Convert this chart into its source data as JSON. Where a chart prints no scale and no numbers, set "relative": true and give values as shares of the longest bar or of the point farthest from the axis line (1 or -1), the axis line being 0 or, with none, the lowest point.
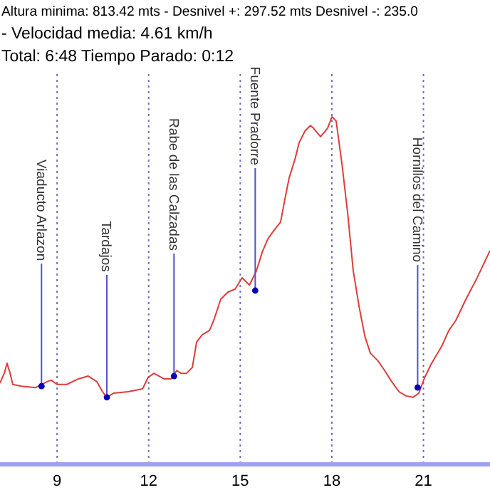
{
  "chart_data": {
    "type": "line",
    "title": "Altura minima: 813.42 mts - Desnivel +: 297.52 mts Desnivel -: 235.0",
    "subtitle": "- Velocidad media: 4.61 km/h",
    "annotations": [
      "Total: 6:48  Tiempo Parado: 0:12",
      {
        "text": "Viaducto Arlazon",
        "x": 8.49,
        "y": 0.225
      },
      {
        "text": "Tardajos",
        "x": 10.63,
        "y": 0.193
      },
      {
        "text": "Rabe de las Calzadas",
        "x": 12.83,
        "y": 0.254
      },
      {
        "text": "Fuente Pradorre",
        "x": 15.49,
        "y": 0.5
      },
      {
        "text": "Hornillos del Camino",
        "x": 20.81,
        "y": 0.221
      }
    ],
    "relative": true,
    "xlim": [
      7.13,
      23.18
    ],
    "xticks": [
      9,
      12,
      15,
      18,
      21
    ],
    "grid": "x",
    "marker": "none",
    "line_style": "solid",
    "x": [
      7.13,
      7.27,
      7.36,
      7.46,
      7.55,
      7.83,
      8.3,
      8.67,
      8.81,
      9.0,
      9.32,
      9.7,
      10.02,
      10.3,
      10.49,
      10.63,
      10.86,
      11.33,
      11.8,
      11.98,
      12.17,
      12.5,
      12.73,
      12.92,
      13.06,
      13.24,
      13.43,
      13.57,
      13.76,
      13.99,
      14.13,
      14.36,
      14.6,
      14.83,
      15.06,
      15.3,
      15.53,
      15.72,
      15.9,
      16.09,
      16.32,
      16.46,
      16.6,
      16.79,
      16.93,
      17.12,
      17.3,
      17.4,
      17.63,
      17.86,
      18.0,
      18.14,
      18.33,
      18.52,
      18.7,
      18.89,
      19.08,
      19.26,
      19.5,
      19.73,
      19.96,
      20.2,
      20.43,
      20.66,
      20.85,
      21.04,
      21.27,
      21.6,
      21.83,
      22.06,
      22.39,
      22.76,
      23.18
    ],
    "series": [
      {
        "color": "#e03c3c",
        "values": [
          0.234,
          0.262,
          0.291,
          0.262,
          0.23,
          0.225,
          0.221,
          0.238,
          0.242,
          0.23,
          0.23,
          0.246,
          0.254,
          0.238,
          0.209,
          0.193,
          0.205,
          0.209,
          0.217,
          0.25,
          0.262,
          0.246,
          0.246,
          0.27,
          0.262,
          0.262,
          0.279,
          0.352,
          0.373,
          0.385,
          0.414,
          0.475,
          0.496,
          0.504,
          0.537,
          0.516,
          0.557,
          0.611,
          0.648,
          0.672,
          0.697,
          0.762,
          0.824,
          0.877,
          0.926,
          0.959,
          0.975,
          0.967,
          0.943,
          0.967,
          1,
          0.988,
          0.865,
          0.721,
          0.557,
          0.455,
          0.369,
          0.32,
          0.299,
          0.27,
          0.238,
          0.209,
          0.197,
          0.193,
          0.205,
          0.25,
          0.291,
          0.34,
          0.385,
          0.414,
          0.475,
          0.537,
          0.615
        ]
      }
    ]
  }
}
